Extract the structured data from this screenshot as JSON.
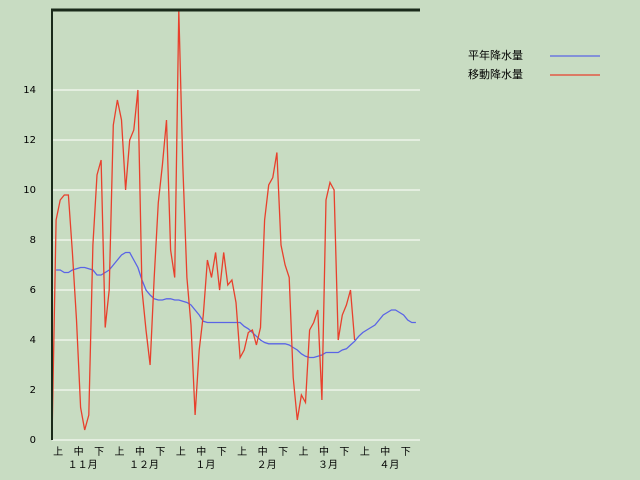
{
  "chart_data": {
    "type": "line",
    "categories": [
      null,
      null,
      "上",
      null,
      null,
      null,
      null,
      "中",
      null,
      null,
      null,
      null,
      "下",
      null,
      null,
      null,
      null,
      "上",
      null,
      null,
      null,
      null,
      "中",
      null,
      null,
      null,
      null,
      "下",
      null,
      null,
      null,
      null,
      "上",
      null,
      null,
      null,
      null,
      "中",
      null,
      null,
      null,
      null,
      "下",
      null,
      null,
      null,
      null,
      "上",
      null,
      null,
      null,
      null,
      "中",
      null,
      null,
      null,
      null,
      "下",
      null,
      null,
      null,
      null,
      "上",
      null,
      null,
      null,
      null,
      "中",
      null,
      null,
      null,
      null,
      "下",
      null,
      null,
      null,
      null,
      "上",
      null,
      null,
      null,
      null,
      "中",
      null,
      null,
      null,
      null,
      "下",
      null,
      null
    ],
    "month_labels": [
      "１１月",
      "１２月",
      "１月",
      "２月",
      "３月",
      "４月"
    ],
    "series": [
      {
        "name": "平年降水量",
        "color": "#5a64e6",
        "values": [
          null,
          6.8,
          6.8,
          6.7,
          6.7,
          6.8,
          6.85,
          6.9,
          6.9,
          6.85,
          6.8,
          6.6,
          6.6,
          6.7,
          6.8,
          7.0,
          7.2,
          7.4,
          7.5,
          7.5,
          7.2,
          6.9,
          6.4,
          6.0,
          5.8,
          5.65,
          5.6,
          5.6,
          5.65,
          5.65,
          5.6,
          5.6,
          5.55,
          5.5,
          5.4,
          5.2,
          5.0,
          4.75,
          4.7,
          4.7,
          4.7,
          4.7,
          4.7,
          4.7,
          4.7,
          4.7,
          4.7,
          4.55,
          4.45,
          4.3,
          4.15,
          4.0,
          3.9,
          3.85,
          3.85,
          3.85,
          3.85,
          3.85,
          3.8,
          3.7,
          3.6,
          3.45,
          3.35,
          3.3,
          3.3,
          3.35,
          3.4,
          3.5,
          3.5,
          3.5,
          3.5,
          3.6,
          3.65,
          3.8,
          3.95,
          4.15,
          4.3,
          4.4,
          4.5,
          4.6,
          4.8,
          5.0,
          5.1,
          5.2,
          5.2,
          5.1,
          5.0,
          4.8,
          4.7,
          4.7
        ]
      },
      {
        "name": "移動降水量",
        "color": "#e8402c",
        "values": [
          0,
          8.8,
          9.6,
          9.8,
          9.8,
          7.5,
          4.8,
          1.3,
          0.4,
          1.0,
          7.8,
          10.6,
          11.2,
          4.5,
          6.0,
          12.6,
          13.6,
          12.8,
          10.0,
          12.0,
          12.4,
          14.0,
          6.0,
          4.4,
          3.0,
          6.5,
          9.5,
          11.0,
          12.8,
          7.6,
          6.5,
          17.2,
          11.0,
          6.5,
          4.6,
          1.0,
          3.6,
          5.0,
          7.2,
          6.5,
          7.5,
          6.0,
          7.5,
          6.2,
          6.4,
          5.5,
          3.3,
          3.6,
          4.3,
          4.4,
          3.8,
          4.5,
          8.8,
          10.2,
          10.5,
          11.5,
          7.8,
          7.0,
          6.5,
          2.5,
          0.8,
          1.8,
          1.5,
          4.4,
          4.7,
          5.2,
          1.6,
          9.6,
          10.3,
          10.0,
          4.0,
          5.0,
          5.4,
          6.0,
          4.0,
          null,
          null,
          null,
          null,
          null,
          null,
          null,
          null,
          null,
          null,
          null,
          null,
          null,
          null,
          null
        ]
      }
    ],
    "ylim": [
      0,
      17.2
    ],
    "yticks": [
      0,
      2,
      4,
      6,
      8,
      10,
      12,
      14
    ],
    "grid": true
  }
}
